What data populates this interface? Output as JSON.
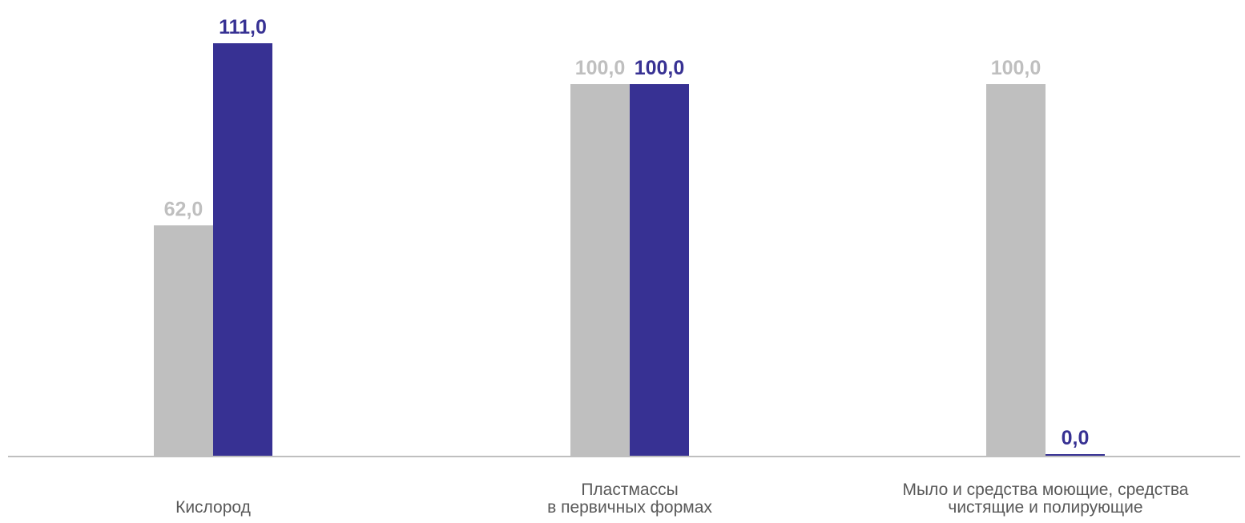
{
  "chart_data": {
    "type": "bar",
    "categories": [
      [
        "Кислород"
      ],
      [
        "Пластмассы",
        "в первичных формах"
      ],
      [
        "Мыло и средства моющие, средства",
        "чистящие и полирующие"
      ]
    ],
    "series": [
      {
        "values": [
          62.0,
          100.0,
          100.0
        ],
        "labels": [
          "62,0",
          "100,0",
          "100,0"
        ],
        "color": "#bfbfbf"
      },
      {
        "values": [
          111.0,
          100.0,
          0.0
        ],
        "labels": [
          "111,0",
          "100,0",
          "0,0"
        ],
        "color": "#373193"
      }
    ],
    "ylim": [
      0,
      111
    ],
    "grid": false,
    "legend": "none",
    "axis_color": "#bfbfbf"
  }
}
